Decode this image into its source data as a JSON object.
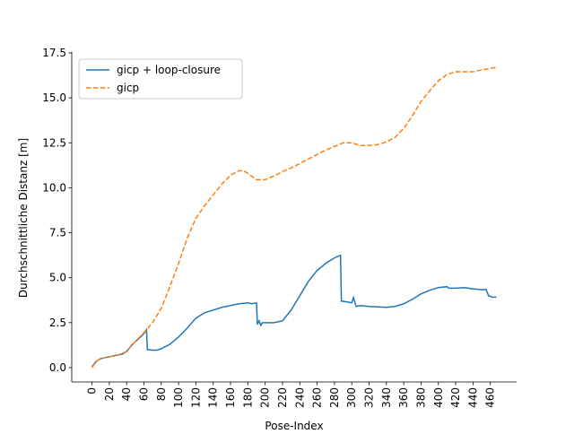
{
  "chart_data": {
    "type": "line",
    "xlabel": "Pose-Index",
    "ylabel": "Durchschnittliche Distanz [m]",
    "xlim": [
      -23.35,
      490.35
    ],
    "ylim": [
      -0.8,
      17.55
    ],
    "xticks": [
      0,
      20,
      40,
      60,
      80,
      100,
      120,
      140,
      160,
      180,
      200,
      220,
      240,
      260,
      280,
      300,
      320,
      340,
      360,
      380,
      400,
      420,
      440,
      460
    ],
    "yticks": [
      {
        "value": 0,
        "label": "0.0"
      },
      2.5,
      {
        "value": 5,
        "label": "5.0"
      },
      7.5,
      {
        "value": 10,
        "label": "10.0"
      },
      12.5,
      {
        "value": 15,
        "label": "15.0"
      },
      17.5
    ],
    "legend": "upper left",
    "series": [
      {
        "name": "gicp + loop-closure",
        "color": "#1f77b4",
        "linestyle": "solid",
        "x": [
          0,
          5,
          10,
          20,
          30,
          35,
          40,
          45,
          50,
          55,
          60,
          63,
          64,
          70,
          75,
          80,
          90,
          100,
          110,
          120,
          130,
          140,
          150,
          160,
          170,
          180,
          185,
          190,
          191,
          193,
          195,
          197,
          200,
          210,
          220,
          230,
          240,
          250,
          260,
          270,
          280,
          287,
          288,
          295,
          300,
          302,
          305,
          310,
          320,
          340,
          350,
          360,
          370,
          380,
          390,
          400,
          410,
          412,
          420,
          430,
          440,
          450,
          455,
          458,
          462,
          467
        ],
        "values": [
          0.05,
          0.35,
          0.5,
          0.6,
          0.7,
          0.75,
          0.9,
          1.2,
          1.45,
          1.65,
          1.9,
          2.1,
          1.0,
          0.97,
          0.97,
          1.05,
          1.3,
          1.7,
          2.2,
          2.75,
          3.05,
          3.2,
          3.35,
          3.45,
          3.55,
          3.6,
          3.55,
          3.6,
          2.4,
          2.6,
          2.35,
          2.5,
          2.5,
          2.5,
          2.6,
          3.2,
          4.0,
          4.8,
          5.4,
          5.8,
          6.1,
          6.25,
          3.7,
          3.65,
          3.6,
          3.9,
          3.4,
          3.45,
          3.4,
          3.35,
          3.4,
          3.55,
          3.8,
          4.1,
          4.3,
          4.45,
          4.5,
          4.42,
          4.42,
          4.45,
          4.38,
          4.33,
          4.35,
          4.0,
          3.92,
          3.92
        ]
      },
      {
        "name": "gicp",
        "color": "#ff7f0e",
        "linestyle": "dashed",
        "x": [
          0,
          5,
          10,
          20,
          30,
          40,
          50,
          60,
          70,
          80,
          90,
          100,
          110,
          120,
          130,
          140,
          150,
          160,
          170,
          175,
          180,
          190,
          200,
          210,
          220,
          230,
          240,
          250,
          260,
          270,
          280,
          290,
          300,
          310,
          320,
          330,
          340,
          350,
          360,
          370,
          380,
          390,
          400,
          410,
          420,
          440,
          450,
          467
        ],
        "values": [
          0.0,
          0.35,
          0.5,
          0.6,
          0.7,
          0.9,
          1.45,
          1.95,
          2.5,
          3.3,
          4.5,
          5.8,
          7.2,
          8.3,
          9.0,
          9.6,
          10.2,
          10.7,
          10.95,
          10.95,
          10.8,
          10.45,
          10.45,
          10.65,
          10.9,
          11.1,
          11.35,
          11.6,
          11.85,
          12.1,
          12.3,
          12.5,
          12.5,
          12.35,
          12.35,
          12.4,
          12.55,
          12.8,
          13.3,
          14.0,
          14.8,
          15.4,
          15.95,
          16.3,
          16.45,
          16.45,
          16.55,
          16.7
        ]
      }
    ]
  }
}
